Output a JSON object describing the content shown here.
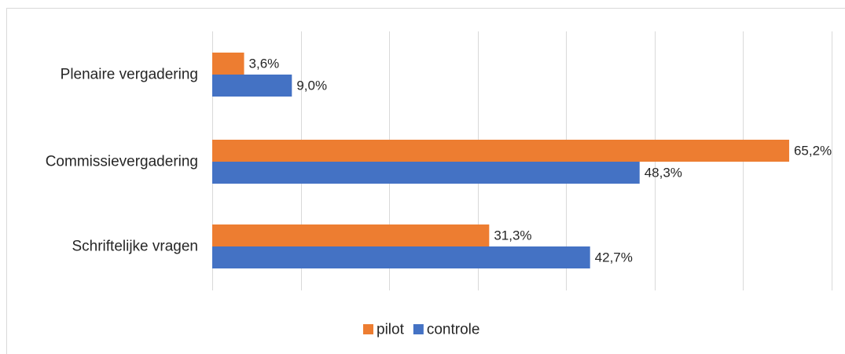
{
  "chart_data": {
    "type": "bar",
    "orientation": "horizontal",
    "categories": [
      "Plenaire vergadering",
      "Commissievergadering",
      "Schriftelijke vragen"
    ],
    "series": [
      {
        "name": "pilot",
        "color": "#ED7D31",
        "values": [
          3.6,
          65.2,
          31.3
        ],
        "labels": [
          "3,6%",
          "65,2%",
          "31,3%"
        ]
      },
      {
        "name": "controle",
        "color": "#4472C4",
        "values": [
          9.0,
          48.3,
          42.7
        ],
        "labels": [
          "9,0%",
          "48,3%",
          "42,7%"
        ]
      }
    ],
    "xlim": [
      0,
      70
    ],
    "grid": true,
    "legend_position": "bottom"
  }
}
